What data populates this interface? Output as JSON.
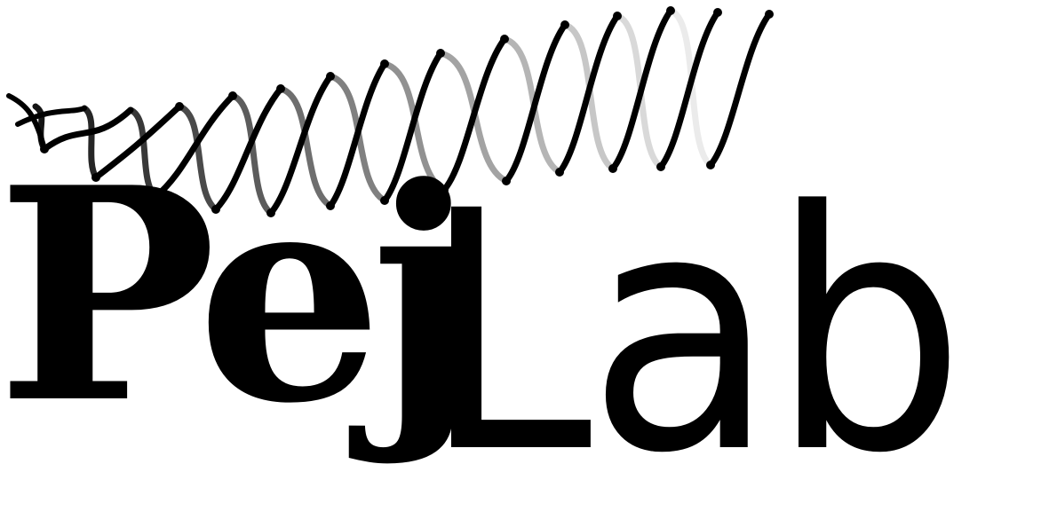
{
  "logo": {
    "name_bold": "Pej",
    "name_light": "Lab",
    "icon": "dna-helix-icon",
    "colors": {
      "ink": "#000000",
      "background": "#ffffff",
      "helix_fade_start": "#000000",
      "helix_fade_mid": "#555555",
      "helix_fade_end": "#e6e6e6"
    }
  }
}
